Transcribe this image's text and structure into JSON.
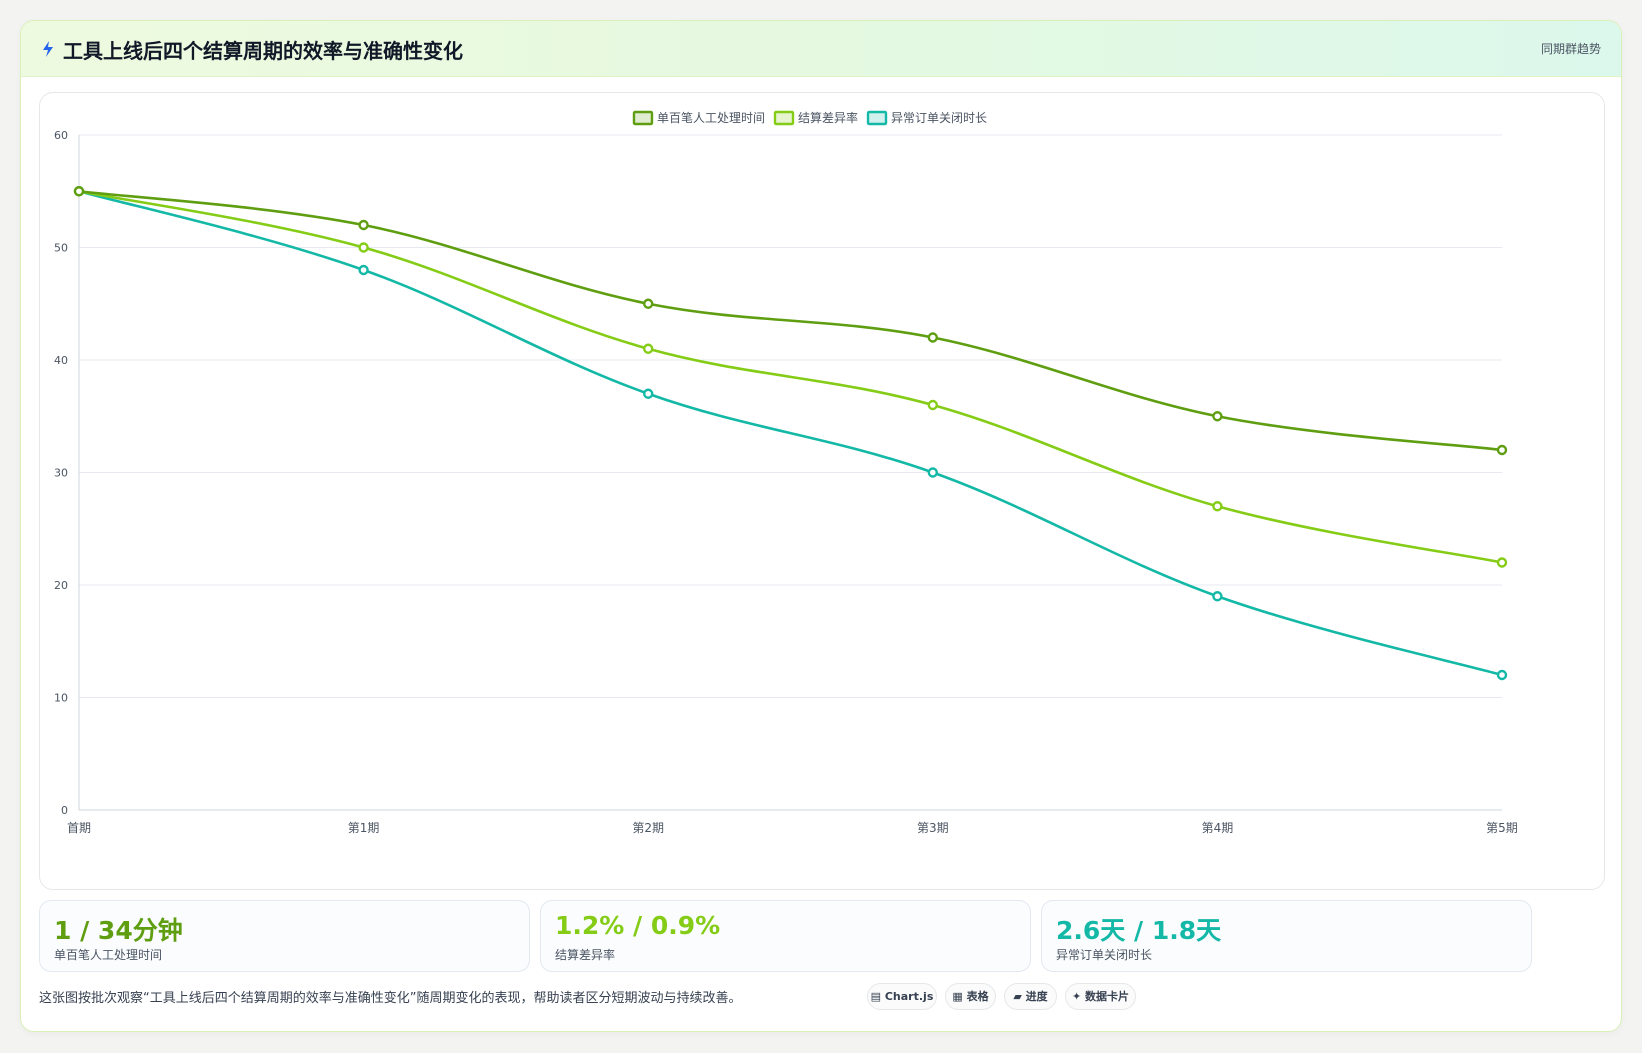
{
  "header": {
    "icon": "lightning-icon",
    "title": "工具上线后四个结算周期的效率与准确性变化",
    "tag": "同期群趋势"
  },
  "chart_data": {
    "type": "line",
    "categories": [
      "首期",
      "第1期",
      "第2期",
      "第3期",
      "第4期",
      "第5期"
    ],
    "ylim": [
      0,
      60
    ],
    "yticks": [
      0,
      10,
      20,
      30,
      40,
      50,
      60
    ],
    "grid": true,
    "legend_position": "top-center",
    "series": [
      {
        "name": "单百笔人工处理时间",
        "color": "#5e9e10",
        "values": [
          55,
          52,
          45,
          42,
          35,
          32
        ]
      },
      {
        "name": "结算差异率",
        "color": "#84cc16",
        "values": [
          55,
          50,
          41,
          36,
          27,
          22
        ]
      },
      {
        "name": "异常订单关闭时长",
        "color": "#14b8a6",
        "values": [
          55,
          48,
          37,
          30,
          19,
          12
        ]
      }
    ]
  },
  "stats": [
    {
      "value": "1 / 34分钟",
      "label": "单百笔人工处理时间",
      "color": "#5e9e10"
    },
    {
      "value": "1.2% / 0.9%",
      "label": "结算差异率",
      "color": "#84cc16"
    },
    {
      "value": "2.6天 / 1.8天",
      "label": "异常订单关闭时长",
      "color": "#14b8a6"
    }
  ],
  "footnote": "这张图按批次观察“工具上线后四个结算周期的效率与准确性变化”随周期变化的表现，帮助读者区分短期波动与持续改善。",
  "chips": [
    {
      "label": "Chart.js",
      "icon": "chart-icon"
    },
    {
      "label": "表格",
      "icon": "table-icon"
    },
    {
      "label": "进度",
      "icon": "progress-icon"
    },
    {
      "label": "数据卡片",
      "icon": "sparkle-icon"
    }
  ]
}
